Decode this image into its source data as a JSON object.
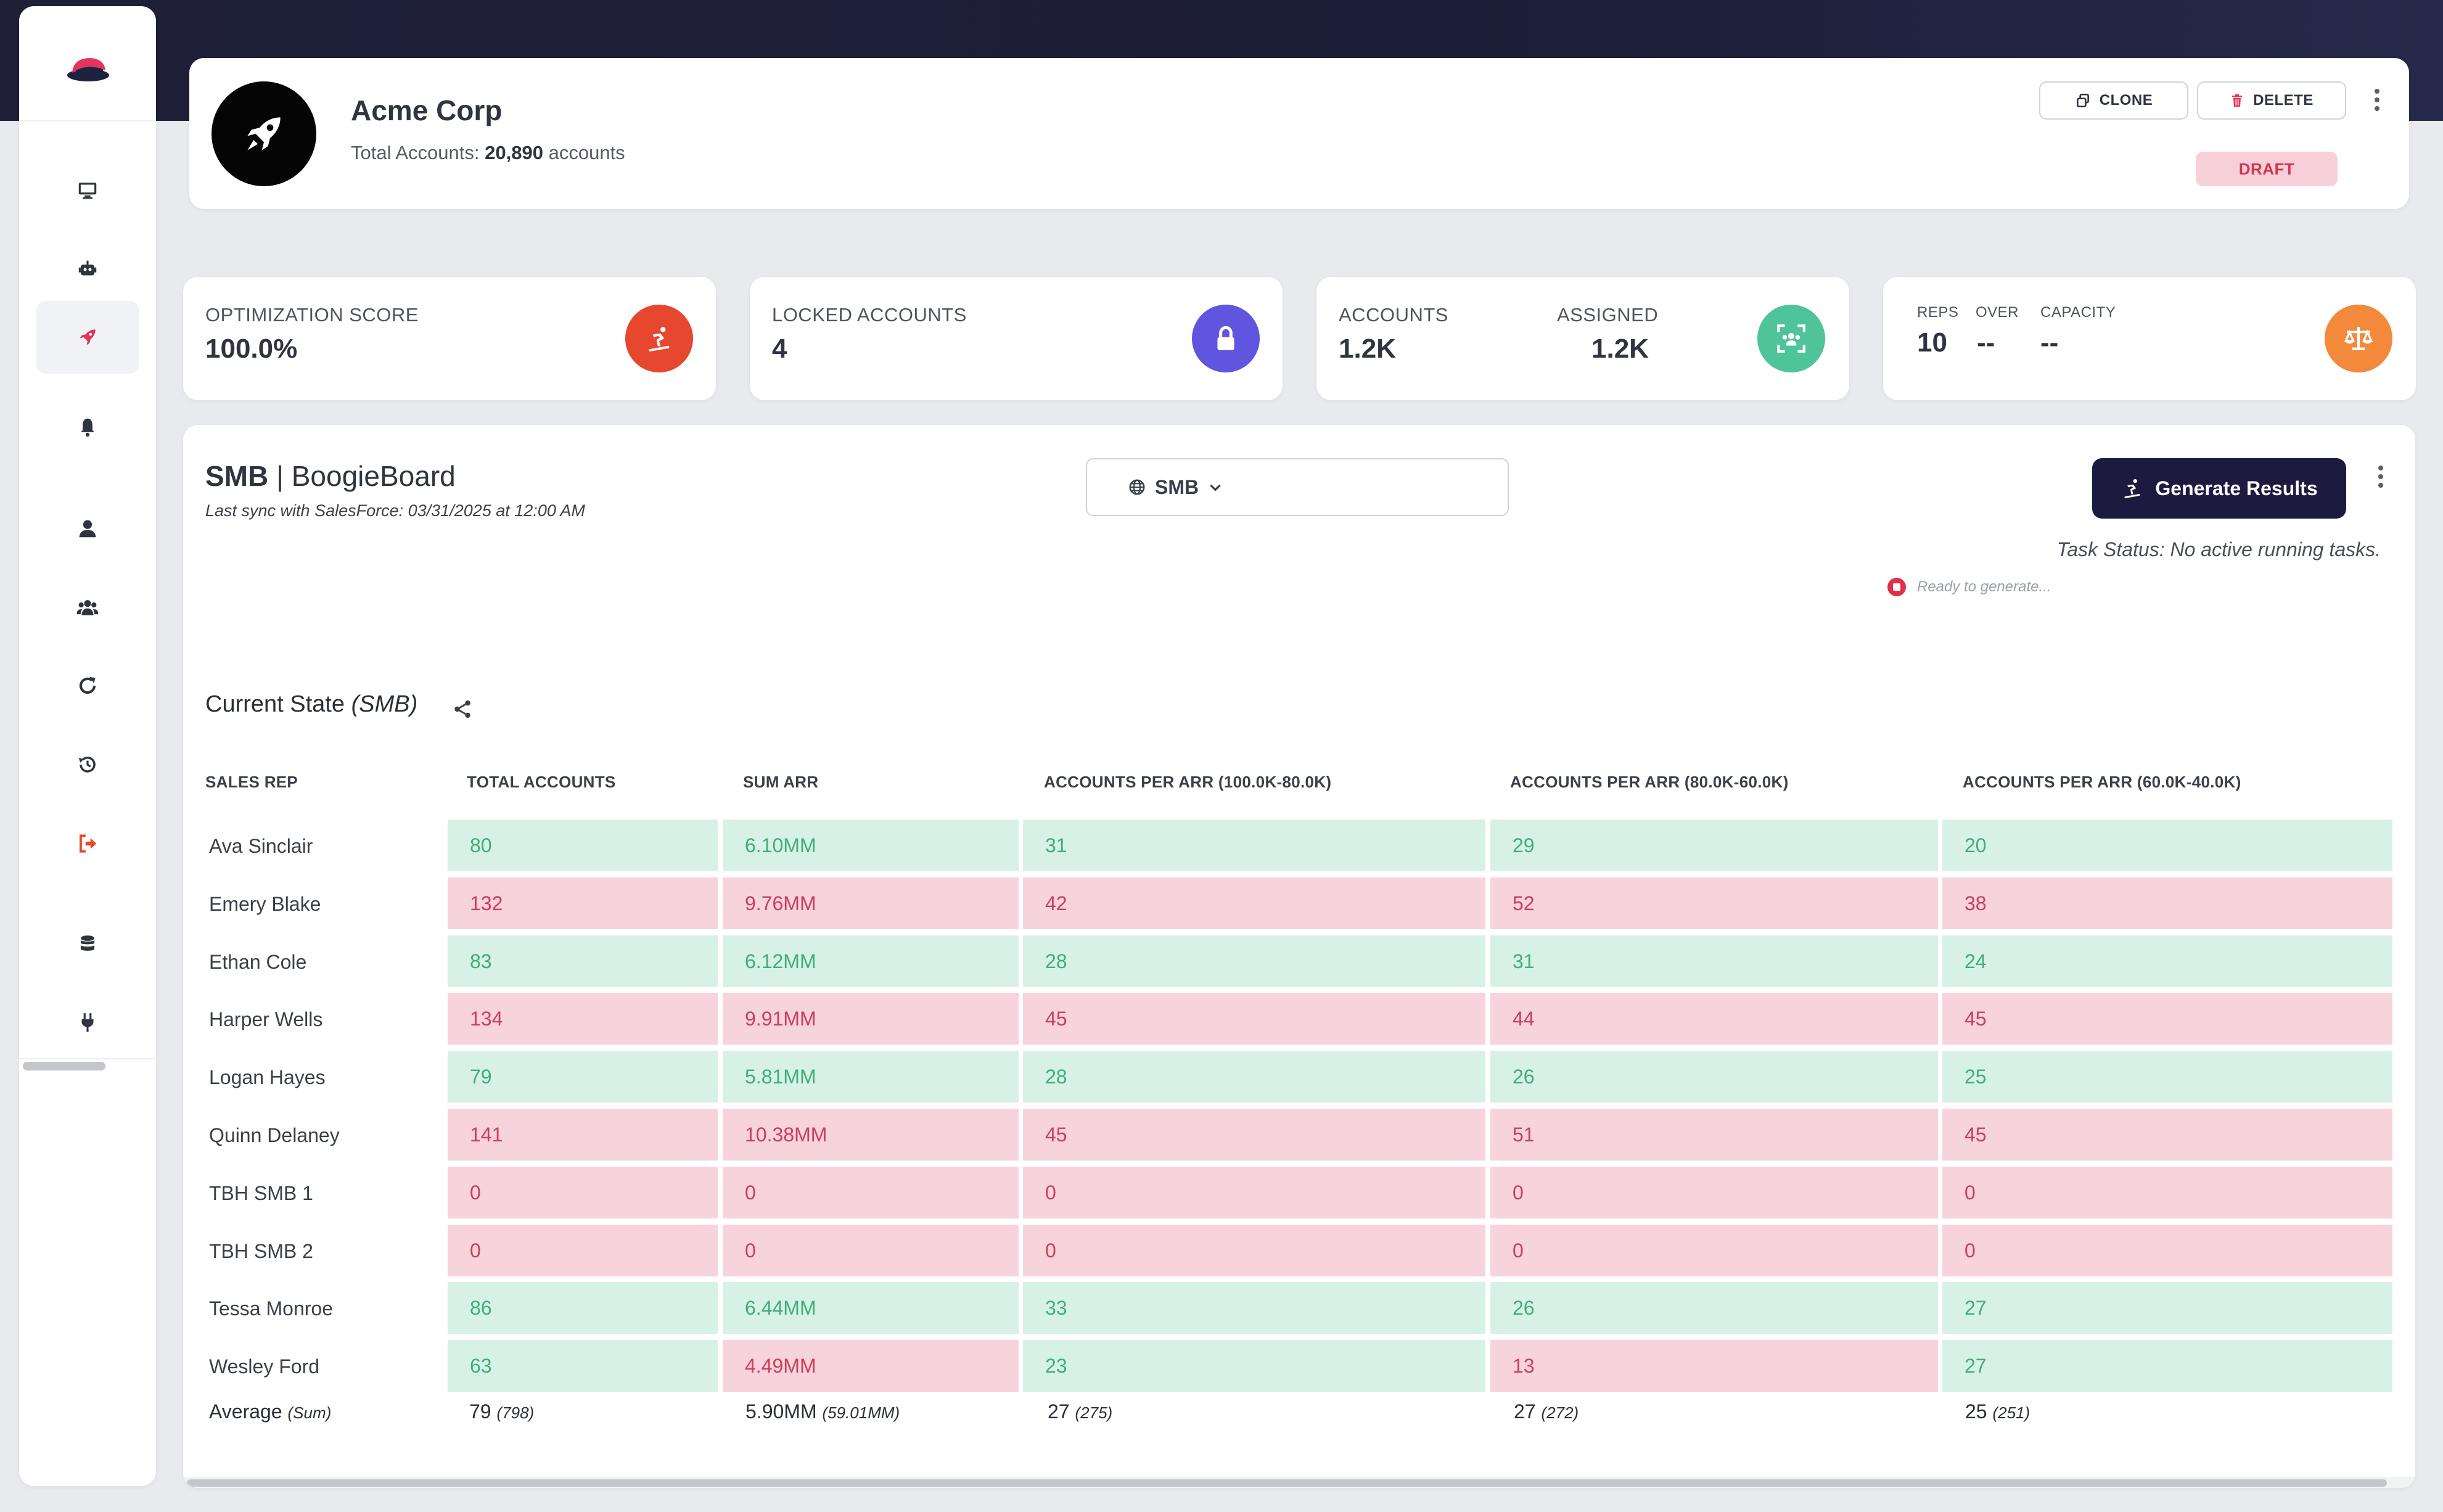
{
  "header": {
    "org_name": "Acme Corp",
    "total_label": "Total Accounts:",
    "total_value": "20,890",
    "total_suffix": "accounts",
    "clone_label": "CLONE",
    "delete_label": "DELETE",
    "status_badge": "DRAFT"
  },
  "stats": {
    "optimization": {
      "label": "OPTIMIZATION SCORE",
      "value": "100.0%"
    },
    "locked": {
      "label": "LOCKED ACCOUNTS",
      "value": "4"
    },
    "accounts": {
      "label": "ACCOUNTS",
      "value": "1.2K",
      "assigned_label": "ASSIGNED",
      "assigned_value": "1.2K"
    },
    "reps": {
      "reps_label": "REPS",
      "reps_value": "10",
      "over_label": "OVER",
      "over_value": "--",
      "capacity_label": "CAPACITY",
      "capacity_value": "--"
    }
  },
  "main": {
    "segment": "SMB",
    "separator": "|",
    "board": "BoogieBoard",
    "sync_text": "Last sync with SalesForce: 03/31/2025 at 12:00 AM",
    "segment_select": "SMB",
    "generate_label": "Generate Results",
    "task_status": "Task Status: No active running tasks.",
    "ready_text": "Ready to generate...",
    "section_title": "Current State",
    "section_segment": "(SMB)"
  },
  "table": {
    "headers": [
      "SALES REP",
      "TOTAL ACCOUNTS",
      "SUM ARR",
      "ACCOUNTS PER ARR (100.0K-80.0K)",
      "ACCOUNTS PER ARR (80.0K-60.0K)",
      "ACCOUNTS PER ARR (60.0K-40.0K)"
    ],
    "rows": [
      {
        "rep": "Ava Sinclair",
        "cells": [
          [
            "80",
            "good"
          ],
          [
            "6.10MM",
            "good"
          ],
          [
            "31",
            "good"
          ],
          [
            "29",
            "good"
          ],
          [
            "20",
            "good"
          ]
        ]
      },
      {
        "rep": "Emery Blake",
        "cells": [
          [
            "132",
            "bad"
          ],
          [
            "9.76MM",
            "bad"
          ],
          [
            "42",
            "bad"
          ],
          [
            "52",
            "bad"
          ],
          [
            "38",
            "bad"
          ]
        ]
      },
      {
        "rep": "Ethan Cole",
        "cells": [
          [
            "83",
            "good"
          ],
          [
            "6.12MM",
            "good"
          ],
          [
            "28",
            "good"
          ],
          [
            "31",
            "good"
          ],
          [
            "24",
            "good"
          ]
        ]
      },
      {
        "rep": "Harper Wells",
        "cells": [
          [
            "134",
            "bad"
          ],
          [
            "9.91MM",
            "bad"
          ],
          [
            "45",
            "bad"
          ],
          [
            "44",
            "bad"
          ],
          [
            "45",
            "bad"
          ]
        ]
      },
      {
        "rep": "Logan Hayes",
        "cells": [
          [
            "79",
            "good"
          ],
          [
            "5.81MM",
            "good"
          ],
          [
            "28",
            "good"
          ],
          [
            "26",
            "good"
          ],
          [
            "25",
            "good"
          ]
        ]
      },
      {
        "rep": "Quinn Delaney",
        "cells": [
          [
            "141",
            "bad"
          ],
          [
            "10.38MM",
            "bad"
          ],
          [
            "45",
            "bad"
          ],
          [
            "51",
            "bad"
          ],
          [
            "45",
            "bad"
          ]
        ]
      },
      {
        "rep": "TBH SMB 1",
        "cells": [
          [
            "0",
            "bad"
          ],
          [
            "0",
            "bad"
          ],
          [
            "0",
            "bad"
          ],
          [
            "0",
            "bad"
          ],
          [
            "0",
            "bad"
          ]
        ]
      },
      {
        "rep": "TBH SMB 2",
        "cells": [
          [
            "0",
            "bad"
          ],
          [
            "0",
            "bad"
          ],
          [
            "0",
            "bad"
          ],
          [
            "0",
            "bad"
          ],
          [
            "0",
            "bad"
          ]
        ]
      },
      {
        "rep": "Tessa Monroe",
        "cells": [
          [
            "86",
            "good"
          ],
          [
            "6.44MM",
            "good"
          ],
          [
            "33",
            "good"
          ],
          [
            "26",
            "good"
          ],
          [
            "27",
            "good"
          ]
        ]
      },
      {
        "rep": "Wesley Ford",
        "cells": [
          [
            "63",
            "good"
          ],
          [
            "4.49MM",
            "bad"
          ],
          [
            "23",
            "good"
          ],
          [
            "13",
            "bad"
          ],
          [
            "27",
            "good"
          ]
        ]
      }
    ],
    "average": {
      "label": "Average",
      "label_sum": "(Sum)",
      "values": [
        [
          "79",
          "(798)"
        ],
        [
          "5.90MM",
          "(59.01MM)"
        ],
        [
          "27",
          "(275)"
        ],
        [
          "27",
          "(272)"
        ],
        [
          "25",
          "(251)"
        ]
      ]
    }
  },
  "icons": {
    "logo": "hat-logo-icon",
    "nav": [
      "desktop-icon",
      "robot-icon",
      "rocket-icon",
      "bell-icon",
      "user-icon",
      "users-icon",
      "refresh-icon",
      "history-icon",
      "sign-out-icon",
      "database-icon",
      "plug-icon"
    ],
    "stat_icons": [
      "snowboarder-icon",
      "lock-icon",
      "team-scan-icon",
      "scale-icon"
    ]
  },
  "colors": {
    "accent": "#e3345c",
    "good_bg": "#d8f1e6",
    "good_text": "#3fae7a",
    "bad_bg": "#f7d3db",
    "bad_text": "#cc3d5c",
    "primary_button": "#1c1b3f"
  }
}
